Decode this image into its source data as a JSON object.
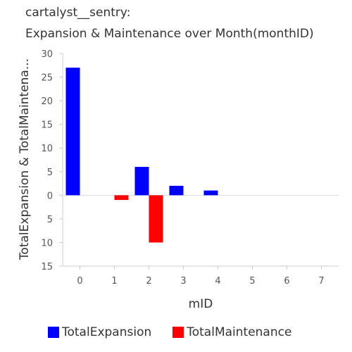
{
  "title_line1": "cartalyst__sentry:",
  "title_line2": "Expansion & Maintenance over Month(monthID)",
  "chart_data": {
    "type": "bar",
    "categories": [
      "0",
      "1",
      "2",
      "3",
      "4",
      "5",
      "6",
      "7"
    ],
    "xlabel": "mID",
    "ylabel": "TotalExpansion & TotalMaintena...",
    "ylim": [
      -15,
      30
    ],
    "yticks": [
      30,
      25,
      20,
      15,
      10,
      5,
      0,
      -5,
      -10,
      -15
    ],
    "ytick_labels": [
      "30",
      "25",
      "20",
      "15",
      "10",
      "5",
      "0",
      "5",
      "10",
      "15"
    ],
    "series": [
      {
        "name": "TotalExpansion",
        "color": "#0000ff",
        "values": [
          27,
          0,
          6,
          2,
          1,
          0,
          0,
          0
        ]
      },
      {
        "name": "TotalMaintenance",
        "color": "#ff0000",
        "values": [
          0,
          -1,
          -10,
          0,
          0,
          0,
          0,
          0
        ]
      }
    ],
    "grid": false,
    "legend_position": "bottom"
  }
}
